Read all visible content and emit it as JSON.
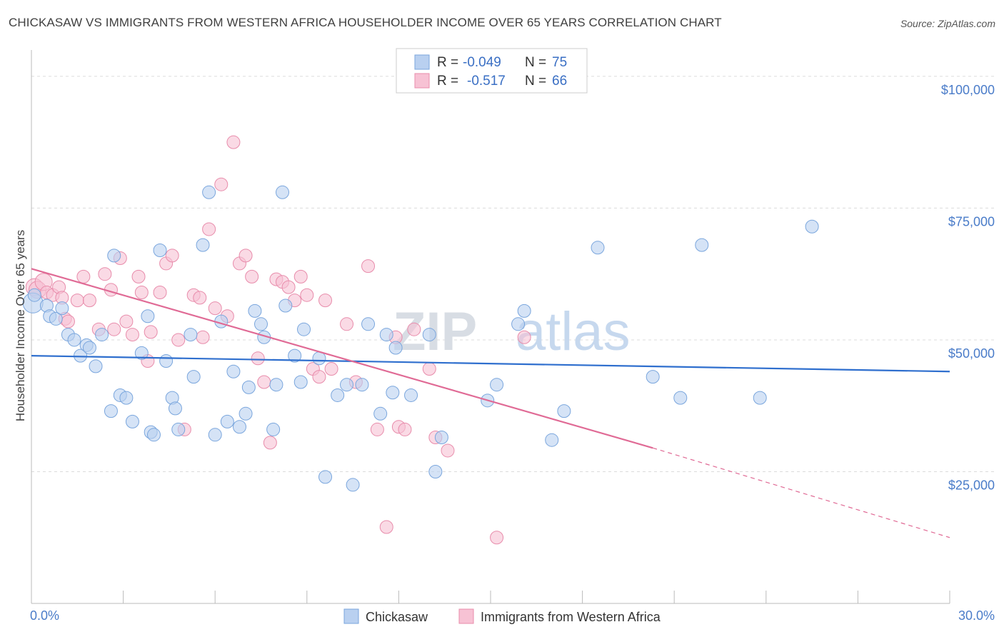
{
  "header": {
    "title": "CHICKASAW VS IMMIGRANTS FROM WESTERN AFRICA HOUSEHOLDER INCOME OVER 65 YEARS CORRELATION CHART",
    "source": "Source: ZipAtlas.com"
  },
  "watermark": {
    "zip": "ZIP",
    "atlas": "atlas"
  },
  "legend": {
    "r_label": "R =",
    "n_label": "N =",
    "rows": [
      {
        "r": "-0.049",
        "n": "75"
      },
      {
        "r": "-0.517",
        "n": "66"
      }
    ]
  },
  "colors": {
    "chickasaw_fill": "#b9d0f0",
    "chickasaw_stroke": "#7aa6dd",
    "chickasaw_line": "#2f6fce",
    "immigrants_fill": "#f7c2d4",
    "immigrants_stroke": "#e88cab",
    "immigrants_line": "#e06a95",
    "axis_text": "#4a7cc9",
    "grid": "#dcdcdc"
  },
  "chart_data": {
    "type": "scatter",
    "ylabel": "Householder Income Over 65 years",
    "x_tick_labels": [
      "0.0%",
      "30.0%"
    ],
    "y_tick_labels": [
      "$25,000",
      "$50,000",
      "$75,000",
      "$100,000"
    ],
    "xlim": [
      0,
      30
    ],
    "ylim": [
      0,
      105000
    ],
    "y_ticks": [
      25000,
      50000,
      75000,
      100000
    ],
    "grid": true,
    "legend_placement": "top-center",
    "series": [
      {
        "name": "Chickasaw",
        "trend": {
          "x": [
            0,
            30
          ],
          "y": [
            47000,
            44000
          ]
        },
        "points": [
          [
            0.05,
            57000
          ],
          [
            0.1,
            58500
          ],
          [
            0.5,
            56500
          ],
          [
            0.6,
            54500
          ],
          [
            0.8,
            54000
          ],
          [
            1.0,
            56000
          ],
          [
            1.2,
            51000
          ],
          [
            1.4,
            50000
          ],
          [
            1.6,
            47000
          ],
          [
            1.8,
            49000
          ],
          [
            1.9,
            48500
          ],
          [
            2.1,
            45000
          ],
          [
            2.3,
            51000
          ],
          [
            2.6,
            36500
          ],
          [
            2.7,
            66000
          ],
          [
            2.9,
            39500
          ],
          [
            3.1,
            39000
          ],
          [
            3.3,
            34500
          ],
          [
            3.6,
            47500
          ],
          [
            3.8,
            54500
          ],
          [
            3.9,
            32500
          ],
          [
            4.0,
            32000
          ],
          [
            4.2,
            67000
          ],
          [
            4.4,
            46000
          ],
          [
            4.6,
            39000
          ],
          [
            4.7,
            37000
          ],
          [
            4.8,
            33000
          ],
          [
            5.2,
            51000
          ],
          [
            5.3,
            43000
          ],
          [
            5.6,
            68000
          ],
          [
            5.8,
            78000
          ],
          [
            6.0,
            32000
          ],
          [
            6.2,
            53500
          ],
          [
            6.4,
            34500
          ],
          [
            6.6,
            44000
          ],
          [
            6.8,
            33500
          ],
          [
            7.0,
            36000
          ],
          [
            7.1,
            41000
          ],
          [
            7.3,
            55500
          ],
          [
            7.5,
            53000
          ],
          [
            7.6,
            50500
          ],
          [
            7.9,
            33000
          ],
          [
            8.0,
            41500
          ],
          [
            8.2,
            78000
          ],
          [
            8.3,
            56500
          ],
          [
            8.6,
            47000
          ],
          [
            8.8,
            42000
          ],
          [
            8.9,
            52000
          ],
          [
            9.4,
            46500
          ],
          [
            9.6,
            24000
          ],
          [
            10.0,
            39500
          ],
          [
            10.3,
            41500
          ],
          [
            10.5,
            22500
          ],
          [
            10.8,
            41500
          ],
          [
            11.0,
            53000
          ],
          [
            11.4,
            36000
          ],
          [
            11.6,
            51000
          ],
          [
            11.8,
            40000
          ],
          [
            11.9,
            48500
          ],
          [
            12.4,
            39500
          ],
          [
            13.0,
            51000
          ],
          [
            13.2,
            25000
          ],
          [
            13.4,
            31500
          ],
          [
            14.9,
            38500
          ],
          [
            15.2,
            41500
          ],
          [
            15.9,
            53000
          ],
          [
            16.1,
            55500
          ],
          [
            17.0,
            31000
          ],
          [
            17.4,
            36500
          ],
          [
            18.5,
            67500
          ],
          [
            20.3,
            43000
          ],
          [
            21.2,
            39000
          ],
          [
            21.9,
            68000
          ],
          [
            23.8,
            39000
          ],
          [
            25.5,
            71500
          ]
        ]
      },
      {
        "name": "Immigrants from Western Africa",
        "trend": {
          "x": [
            0,
            20.3
          ],
          "y": [
            63500,
            29500
          ]
        },
        "trend_dashed": {
          "x": [
            20.3,
            30
          ],
          "y": [
            29500,
            12500
          ]
        },
        "points": [
          [
            0.1,
            60000
          ],
          [
            0.2,
            59500
          ],
          [
            0.4,
            61000
          ],
          [
            0.5,
            59000
          ],
          [
            0.7,
            58500
          ],
          [
            0.9,
            60000
          ],
          [
            1.0,
            58000
          ],
          [
            1.1,
            54000
          ],
          [
            1.2,
            53500
          ],
          [
            1.5,
            57500
          ],
          [
            1.7,
            62000
          ],
          [
            1.9,
            57500
          ],
          [
            2.2,
            52000
          ],
          [
            2.4,
            62500
          ],
          [
            2.6,
            59500
          ],
          [
            2.7,
            52000
          ],
          [
            2.9,
            65500
          ],
          [
            3.1,
            53500
          ],
          [
            3.3,
            51000
          ],
          [
            3.5,
            62000
          ],
          [
            3.6,
            59000
          ],
          [
            3.8,
            46000
          ],
          [
            3.9,
            51500
          ],
          [
            4.2,
            59000
          ],
          [
            4.4,
            64500
          ],
          [
            4.6,
            66000
          ],
          [
            4.8,
            50000
          ],
          [
            5.0,
            33000
          ],
          [
            5.3,
            58500
          ],
          [
            5.5,
            58000
          ],
          [
            5.6,
            50500
          ],
          [
            5.8,
            71000
          ],
          [
            6.0,
            56000
          ],
          [
            6.2,
            79500
          ],
          [
            6.4,
            54500
          ],
          [
            6.6,
            87500
          ],
          [
            6.8,
            64500
          ],
          [
            7.0,
            66000
          ],
          [
            7.2,
            62000
          ],
          [
            7.4,
            46500
          ],
          [
            7.6,
            42000
          ],
          [
            7.8,
            30500
          ],
          [
            8.0,
            61500
          ],
          [
            8.2,
            61000
          ],
          [
            8.4,
            60000
          ],
          [
            8.6,
            57500
          ],
          [
            8.8,
            62000
          ],
          [
            9.0,
            58500
          ],
          [
            9.2,
            44500
          ],
          [
            9.4,
            43000
          ],
          [
            9.6,
            57500
          ],
          [
            9.8,
            44500
          ],
          [
            10.3,
            53000
          ],
          [
            10.6,
            42000
          ],
          [
            11.0,
            64000
          ],
          [
            11.3,
            33000
          ],
          [
            11.6,
            14500
          ],
          [
            12.0,
            33500
          ],
          [
            12.2,
            33000
          ],
          [
            12.5,
            52000
          ],
          [
            13.0,
            44500
          ],
          [
            13.2,
            31500
          ],
          [
            13.6,
            29000
          ],
          [
            15.2,
            12500
          ],
          [
            16.1,
            50500
          ],
          [
            11.9,
            50500
          ]
        ]
      }
    ]
  },
  "bottom_legend": {
    "items": [
      {
        "label": "Chickasaw"
      },
      {
        "label": "Immigrants from Western Africa"
      }
    ]
  }
}
